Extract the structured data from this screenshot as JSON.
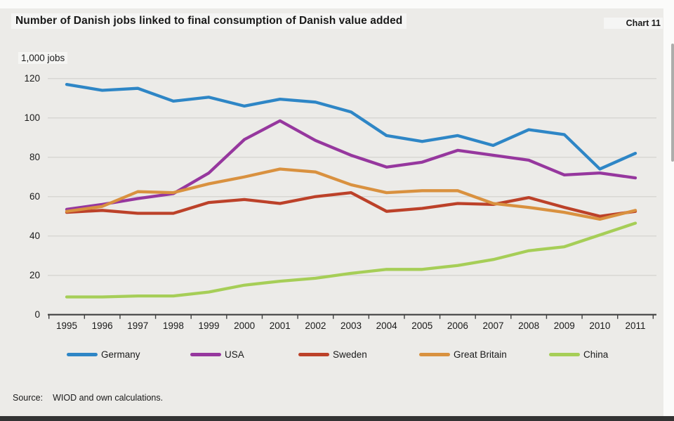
{
  "page": {
    "title": "Number of Danish jobs linked to final consumption of Danish value added",
    "chart_ref": "Chart 11",
    "unit_label": "1,000 jobs",
    "source_label": "Source:",
    "source_text": "WIOD and own calculations."
  },
  "colors": {
    "background": "#ECEBE8",
    "frame": "#FBFBFA",
    "bottom_bar": "#333333",
    "gridline": "#D8D7D3",
    "axis": "#404040",
    "text": "#1A1A1A"
  },
  "chart_data": {
    "type": "line",
    "title": "Number of Danish jobs linked to final consumption of Danish value added",
    "ylabel": "1,000 jobs",
    "xlabel": "",
    "categories": [
      1995,
      1996,
      1997,
      1998,
      1999,
      2000,
      2001,
      2002,
      2003,
      2004,
      2005,
      2006,
      2007,
      2008,
      2009,
      2010,
      2011
    ],
    "series": [
      {
        "name": "Germany",
        "color": "#2E86C6",
        "values": [
          117,
          114,
          115,
          108.5,
          110.5,
          106,
          109.5,
          108,
          103,
          91,
          88,
          91,
          86,
          94,
          91.5,
          74,
          82
        ]
      },
      {
        "name": "USA",
        "color": "#96379E",
        "values": [
          53.5,
          56,
          59,
          61.5,
          72,
          89,
          98.5,
          88.5,
          81,
          75,
          77.5,
          83.5,
          81,
          78.5,
          71,
          72,
          69.5
        ]
      },
      {
        "name": "Sweden",
        "color": "#BC4129",
        "values": [
          52,
          53,
          51.5,
          51.5,
          57,
          58.5,
          56.5,
          60,
          62,
          52.5,
          54,
          56.5,
          56,
          59.5,
          54.5,
          50,
          52.5
        ]
      },
      {
        "name": "Great Britain",
        "color": "#D9913F",
        "values": [
          52.5,
          55,
          62.5,
          62,
          66.5,
          70,
          74,
          72.5,
          66,
          62,
          63,
          63,
          56.5,
          54.5,
          52,
          48.5,
          53
        ]
      },
      {
        "name": "China",
        "color": "#A6CE57",
        "values": [
          9,
          9,
          9.5,
          9.5,
          11.5,
          15,
          17,
          18.5,
          21,
          23,
          23,
          25,
          28,
          32.5,
          34.5,
          40.5,
          46.5
        ]
      }
    ],
    "ylim": [
      0,
      120
    ],
    "yticks": [
      0,
      20,
      40,
      60,
      80,
      100,
      120
    ],
    "grid": true,
    "legend_position": "bottom"
  }
}
